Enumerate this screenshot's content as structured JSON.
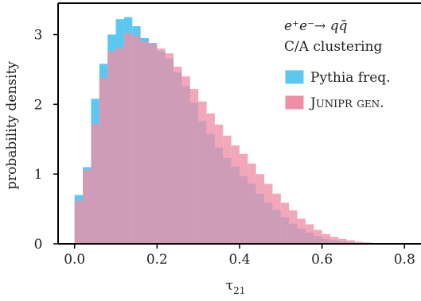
{
  "chart_data": {
    "type": "histogram",
    "xlabel_base": "τ",
    "xlabel_sub": "21",
    "ylabel": "probability density",
    "xlim": [
      -0.04,
      0.84
    ],
    "ylim": [
      0,
      3.45
    ],
    "xticks": [
      "0.0",
      "0.2",
      "0.4",
      "0.6",
      "0.8"
    ],
    "yticks": [
      "0",
      "1",
      "2",
      "3"
    ],
    "bin_width": 0.02,
    "legend": {
      "title_line1": "e⁺e⁻→ qq̄",
      "title_line2": "C/A clustering",
      "placement": "top-right"
    },
    "series": [
      {
        "name": "Pythia freq.",
        "color": "#5bc8ef",
        "x_start": 0.0,
        "values": [
          0.7,
          1.1,
          2.08,
          2.58,
          3.0,
          3.22,
          3.25,
          3.12,
          2.95,
          2.88,
          2.76,
          2.66,
          2.46,
          2.26,
          2.02,
          1.76,
          1.57,
          1.38,
          1.23,
          1.11,
          0.97,
          0.86,
          0.72,
          0.59,
          0.49,
          0.38,
          0.29,
          0.22,
          0.16,
          0.11,
          0.07,
          0.05,
          0.035,
          0.02,
          0.012,
          0.006,
          0.003,
          0.002,
          0.001,
          0.0005
        ]
      },
      {
        "name": "JUNIPR gen.",
        "color": "#ee8fa6",
        "x_start": 0.0,
        "values": [
          0.62,
          1.06,
          1.72,
          2.38,
          2.76,
          2.81,
          3.02,
          2.98,
          2.9,
          2.87,
          2.8,
          2.73,
          2.54,
          2.4,
          2.22,
          2.04,
          1.87,
          1.71,
          1.55,
          1.41,
          1.29,
          1.15,
          1.0,
          0.86,
          0.72,
          0.59,
          0.48,
          0.36,
          0.28,
          0.2,
          0.14,
          0.1,
          0.07,
          0.05,
          0.03,
          0.02,
          0.01,
          0.006,
          0.003,
          0.001
        ]
      }
    ]
  }
}
